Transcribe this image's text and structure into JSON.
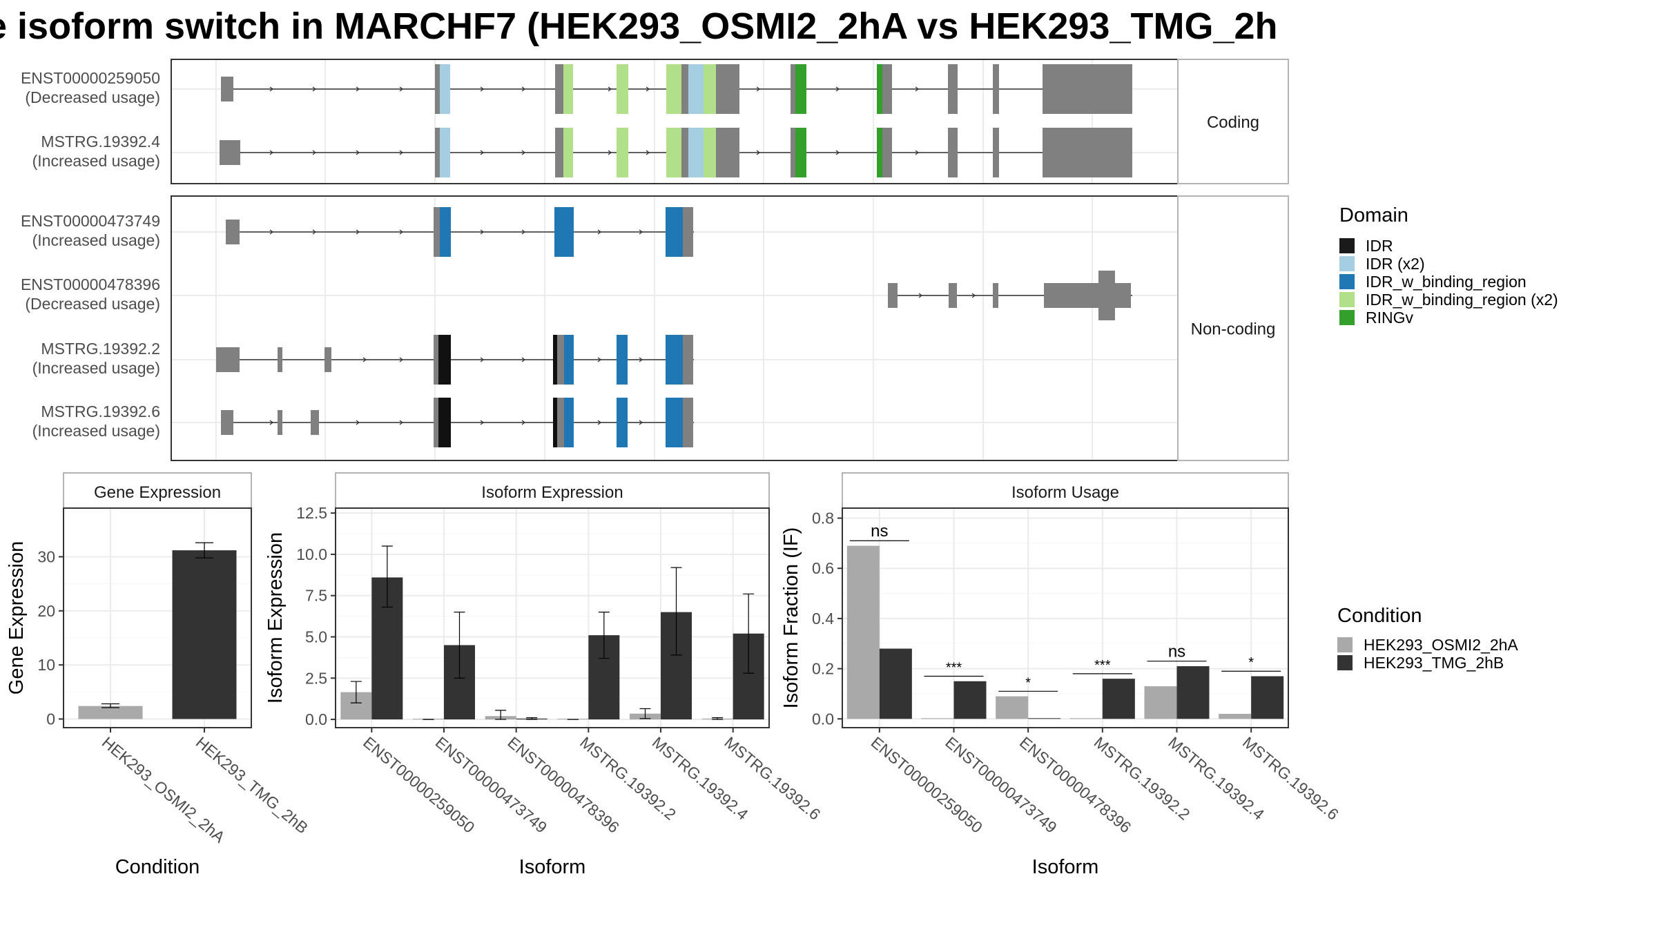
{
  "title": "e isoform switch in MARCHF7 (HEK293_OSMI2_2hA vs HEK293_TMG_2h",
  "structure": {
    "panels": [
      {
        "label": "Coding",
        "isoforms": [
          {
            "id": "ENST00000259050",
            "usage": "(Decreased usage)"
          },
          {
            "id": "MSTRG.19392.4",
            "usage": "(Increased usage)"
          }
        ]
      },
      {
        "label": "Non-coding",
        "isoforms": [
          {
            "id": "ENST00000473749",
            "usage": "(Increased usage)"
          },
          {
            "id": "ENST00000478396",
            "usage": "(Decreased usage)"
          },
          {
            "id": "MSTRG.19392.2",
            "usage": "(Increased usage)"
          },
          {
            "id": "MSTRG.19392.6",
            "usage": "(Increased usage)"
          }
        ]
      }
    ]
  },
  "legend_domain": {
    "title": "Domain",
    "items": [
      {
        "label": "IDR",
        "color": "#1a1a1a"
      },
      {
        "label": "IDR (x2)",
        "color": "#a6cee3"
      },
      {
        "label": "IDR_w_binding_region",
        "color": "#1f78b4"
      },
      {
        "label": "IDR_w_binding_region (x2)",
        "color": "#b2df8a"
      },
      {
        "label": "RINGv",
        "color": "#33a02c"
      }
    ]
  },
  "legend_condition": {
    "title": "Condition",
    "items": [
      {
        "label": "HEK293_OSMI2_2hA",
        "color": "#a9a9a9"
      },
      {
        "label": "HEK293_TMG_2hB",
        "color": "#333333"
      }
    ]
  },
  "chart_data": [
    {
      "type": "bar",
      "title": "Gene Expression",
      "xlabel": "Condition",
      "ylabel": "Gene Expression",
      "ylim": [
        -1.6,
        39
      ],
      "yticks": [
        0,
        10,
        20,
        30
      ],
      "categories": [
        "HEK293_OSMI2_2hA",
        "HEK293_TMG_2hB"
      ],
      "values": [
        2.4,
        31.2
      ],
      "errors": [
        [
          2.1,
          2.8
        ],
        [
          29.8,
          32.6
        ]
      ]
    },
    {
      "type": "bar",
      "title": "Isoform Expression",
      "xlabel": "Isoform",
      "ylabel": "Isoform Expression",
      "ylim": [
        -0.5,
        12.8
      ],
      "yticks": [
        0.0,
        2.5,
        5.0,
        7.5,
        10.0,
        12.5
      ],
      "categories": [
        "ENST00000259050",
        "ENST00000473749",
        "ENST00000478396",
        "MSTRG.19392.2",
        "MSTRG.19392.4",
        "MSTRG.19392.6"
      ],
      "series": [
        {
          "name": "HEK293_OSMI2_2hA",
          "values": [
            1.65,
            0.0,
            0.2,
            0.0,
            0.35,
            0.05
          ],
          "errors": [
            [
              1.0,
              2.3
            ],
            [
              0.0,
              0.0
            ],
            [
              0.0,
              0.55
            ],
            [
              0.0,
              0.0
            ],
            [
              0.05,
              0.65
            ],
            [
              0.0,
              0.1
            ]
          ]
        },
        {
          "name": "HEK293_TMG_2hB",
          "values": [
            8.6,
            4.5,
            0.05,
            5.1,
            6.5,
            5.2
          ],
          "errors": [
            [
              6.8,
              10.5
            ],
            [
              2.5,
              6.5
            ],
            [
              0.0,
              0.1
            ],
            [
              3.7,
              6.5
            ],
            [
              3.9,
              9.2
            ],
            [
              2.8,
              7.6
            ]
          ]
        }
      ]
    },
    {
      "type": "bar",
      "title": "Isoform Usage",
      "xlabel": "Isoform",
      "ylabel": "Isoform Fraction (IF)",
      "ylim": [
        -0.035,
        0.84
      ],
      "yticks": [
        0.0,
        0.2,
        0.4,
        0.6,
        0.8
      ],
      "categories": [
        "ENST00000259050",
        "ENST00000473749",
        "ENST00000478396",
        "MSTRG.19392.2",
        "MSTRG.19392.4",
        "MSTRG.19392.6"
      ],
      "series": [
        {
          "name": "HEK293_OSMI2_2hA",
          "values": [
            0.69,
            0.0,
            0.09,
            0.0,
            0.13,
            0.02
          ]
        },
        {
          "name": "HEK293_TMG_2hB",
          "values": [
            0.28,
            0.15,
            0.0,
            0.16,
            0.21,
            0.17
          ]
        }
      ],
      "significance": [
        "ns",
        "***",
        "*",
        "***",
        "ns",
        "*"
      ]
    }
  ]
}
